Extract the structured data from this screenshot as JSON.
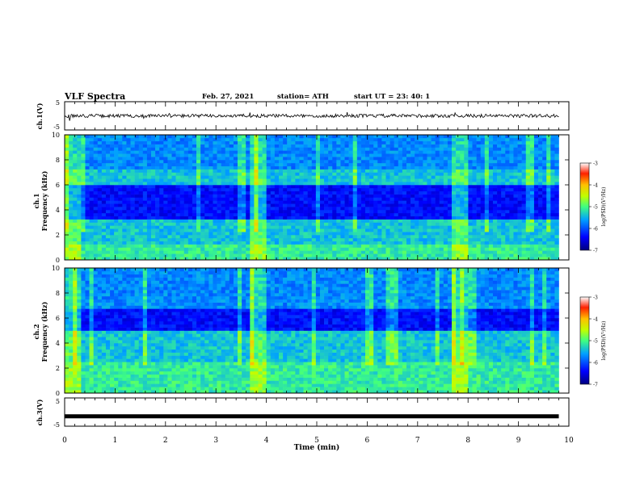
{
  "header": {
    "title": "VLF Spectra",
    "date": "Feb. 27, 2021",
    "station": "station= ATH",
    "start": "start  UT  =   23: 40: 1"
  },
  "chart_data": [
    {
      "type": "line",
      "panel": "ch1-waveform",
      "ylabel": "ch.1(V)",
      "yticks": [
        "5",
        "-5"
      ],
      "ylim": [
        -5,
        5
      ],
      "baseline": 0,
      "x_range": [
        0,
        9.8
      ]
    },
    {
      "type": "heatmap",
      "panel": "ch1-spectrogram",
      "ylabel": "ch.1",
      "ylabel2": "Frequency  (kHz)",
      "ylim": [
        0,
        10
      ],
      "yticks": [
        "0",
        "2",
        "4",
        "6",
        "8",
        "10"
      ],
      "x_range": [
        0,
        9.8
      ],
      "bright_intervals_min": [
        [
          0,
          0.3
        ],
        [
          3.7,
          4.0
        ],
        [
          7.7,
          8.0
        ]
      ],
      "bands_khz": [
        {
          "from": 0,
          "to": 1.2,
          "level": "high"
        },
        {
          "from": 1.2,
          "to": 3.2,
          "level": "medium"
        },
        {
          "from": 3.2,
          "to": 6.0,
          "level": "low"
        },
        {
          "from": 6.0,
          "to": 7.3,
          "level": "medium"
        },
        {
          "from": 7.3,
          "to": 10,
          "level": "medium-low"
        }
      ],
      "colorbar": {
        "label": "log(PSD)(V²/Hz)",
        "ticks": [
          "-3",
          "-4",
          "-5",
          "-6",
          "-7"
        ],
        "range": [
          -7,
          -3
        ]
      }
    },
    {
      "type": "heatmap",
      "panel": "ch2-spectrogram",
      "ylabel": "ch.2",
      "ylabel2": "Frequency  (kHz)",
      "ylim": [
        0,
        10
      ],
      "yticks": [
        "0",
        "2",
        "4",
        "6",
        "8",
        "10"
      ],
      "x_range": [
        0,
        9.8
      ],
      "bright_intervals_min": [
        [
          0,
          0.3
        ],
        [
          3.7,
          4.0
        ],
        [
          7.7,
          8.0
        ]
      ],
      "bands_khz": [
        {
          "from": 0,
          "to": 2.4,
          "level": "high"
        },
        {
          "from": 2.4,
          "to": 5.0,
          "level": "medium"
        },
        {
          "from": 5.0,
          "to": 6.8,
          "level": "low"
        },
        {
          "from": 6.8,
          "to": 10,
          "level": "medium-low"
        }
      ],
      "colorbar": {
        "label": "log(PSD)(V²/Hz)",
        "ticks": [
          "-3",
          "-4",
          "-5",
          "-6",
          "-7"
        ],
        "range": [
          -7,
          -3
        ]
      }
    },
    {
      "type": "line",
      "panel": "ch3-waveform",
      "ylabel": "ch.3(V)",
      "yticks": [
        "5",
        "-5"
      ],
      "ylim": [
        -5,
        5
      ],
      "baseline": -1.5,
      "x_range": [
        0,
        9.8
      ]
    }
  ],
  "xaxis": {
    "label": "Time  (min)",
    "ticks": [
      "0",
      "1",
      "2",
      "3",
      "4",
      "5",
      "6",
      "7",
      "8",
      "9",
      "10"
    ],
    "range": [
      0,
      10
    ]
  },
  "colors": {
    "frame": "#000000",
    "trace": "#000000",
    "colormap": [
      "#00007f",
      "#0000ff",
      "#0080ff",
      "#00e0e0",
      "#40ff80",
      "#c0ff00",
      "#ffe000",
      "#ff6000",
      "#e00000",
      "#ffffff"
    ]
  }
}
